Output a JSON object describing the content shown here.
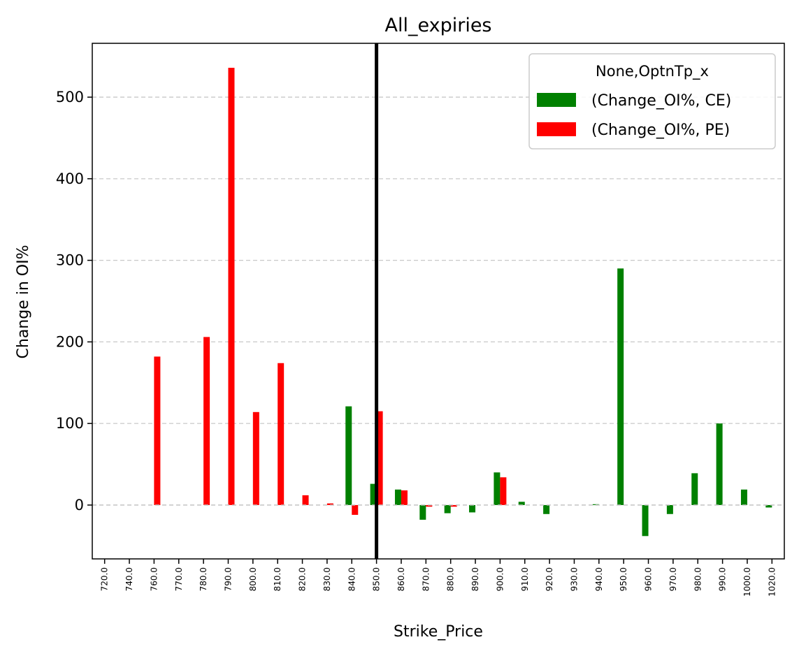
{
  "chart_data": {
    "type": "bar",
    "title": "All_expiries",
    "xlabel": "Strike_Price",
    "ylabel": "Change in OI%",
    "categories": [
      "720.0",
      "740.0",
      "760.0",
      "770.0",
      "780.0",
      "790.0",
      "800.0",
      "810.0",
      "820.0",
      "830.0",
      "840.0",
      "850.0",
      "860.0",
      "870.0",
      "880.0",
      "890.0",
      "900.0",
      "910.0",
      "920.0",
      "930.0",
      "940.0",
      "950.0",
      "960.0",
      "970.0",
      "980.0",
      "990.0",
      "1000.0",
      "1020.0"
    ],
    "series": [
      {
        "name": "(Change_OI%, CE)",
        "color": "#008000",
        "values": [
          null,
          null,
          null,
          null,
          null,
          null,
          null,
          null,
          null,
          null,
          121,
          26,
          19,
          -18,
          -10,
          -9,
          40,
          4,
          -11,
          null,
          1,
          290,
          -38,
          -11,
          39,
          100,
          19,
          -3
        ]
      },
      {
        "name": "(Change_OI%, PE)",
        "color": "#ff0000",
        "values": [
          null,
          null,
          182,
          null,
          206,
          536,
          114,
          174,
          12,
          2,
          -12,
          115,
          18,
          -2,
          -2,
          null,
          34,
          null,
          null,
          null,
          null,
          null,
          null,
          null,
          null,
          null,
          null,
          null
        ]
      }
    ],
    "ylim": [
      -66,
      566
    ],
    "yticks": [
      0,
      100,
      200,
      300,
      400,
      500
    ],
    "grid": "horizontal-dashed",
    "legend": {
      "title": "None,OptnTp_x",
      "position": "top-right"
    },
    "vertical_marker": {
      "category": "850.0",
      "color": "#000000"
    }
  }
}
